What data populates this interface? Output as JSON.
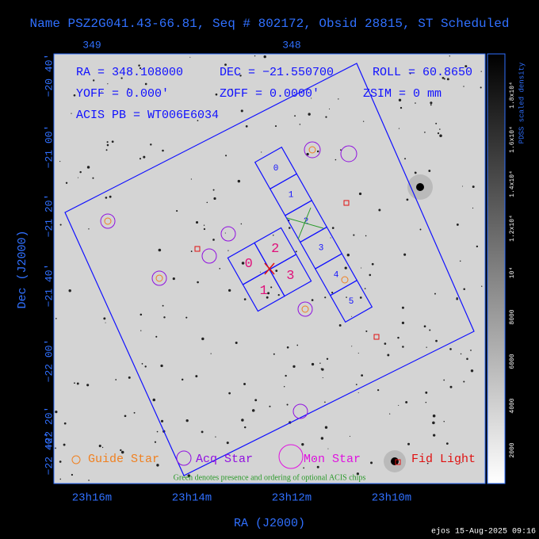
{
  "header": {
    "title": "Name PSZ2G041.43-66.81, Seq # 802172, Obsid 28815, ST Scheduled"
  },
  "top_axis": {
    "ticks": [
      "349",
      "348"
    ]
  },
  "info": {
    "ra": "RA = 348.108000",
    "dec": "DEC = −21.550700",
    "roll": "ROLL = 60.8650",
    "yoff": "YOFF =  0.000'",
    "zoff": "ZOFF =  0.0000'",
    "zsim": "ZSIM = 0 mm",
    "acis": "ACIS PB = WT006E6034"
  },
  "y_axis": {
    "label": "Dec (J2000)",
    "ticks": [
      "−20 40'",
      "−21 00'",
      "−21 20'",
      "−21 40'",
      "−22 00'",
      "−22 20'",
      "−22 40'"
    ]
  },
  "x_axis": {
    "label": "RA (J2000)",
    "ticks": [
      "23h16m",
      "23h14m",
      "23h12m",
      "23h10m"
    ]
  },
  "colorbar": {
    "label": "PDSS scaled density",
    "ticks": [
      "2000",
      "4000",
      "6000",
      "8000",
      "10⁴",
      "1.2x10⁴",
      "1.4x10⁴",
      "1.6x10⁴",
      "1.8x10⁴"
    ]
  },
  "acis_s": {
    "chips": [
      "0",
      "1",
      "2",
      "3",
      "4",
      "5"
    ]
  },
  "acis_i": {
    "chips": [
      "0",
      "1",
      "2",
      "3"
    ]
  },
  "legend": {
    "guide": "Guide Star",
    "acq": "Acq Star",
    "mon": "Mon Star",
    "fid": "Fid Light"
  },
  "note": "Green denotes presence and ordering of optional ACIS chips",
  "footer": "ejos 15-Aug-2025 09:16"
}
